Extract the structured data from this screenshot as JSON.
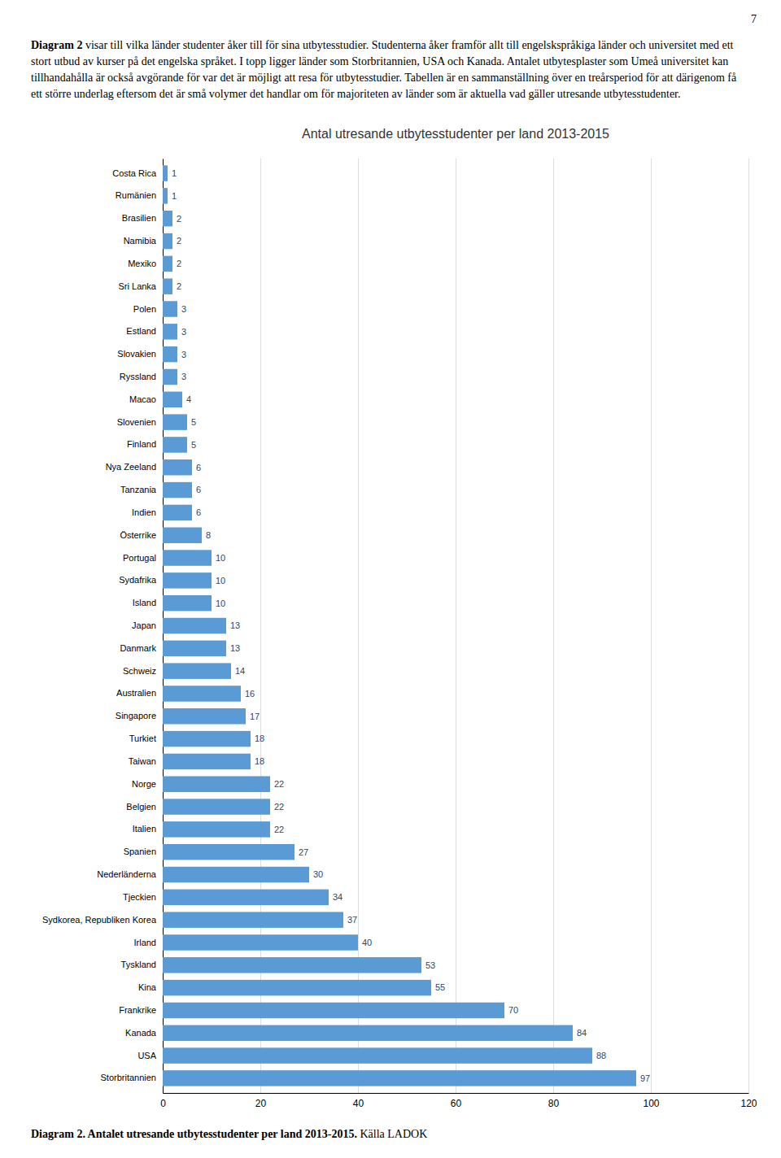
{
  "page_number": "7",
  "paragraph_lead": "Diagram 2",
  "paragraph": "visar till vilka länder studenter åker till för sina utbytesstudier. Studenterna åker framför allt till engelskspråkiga länder och universitet med ett stort utbud av kurser på det engelska språket. I topp ligger länder som Storbritannien, USA och Kanada. Antalet utbytesplaster som Umeå universitet kan tillhandahålla är också avgörande för var det är möjligt att resa för utbytesstudier. Tabellen är en sammanställning över en treårsperiod för att därigenom få ett större underlag eftersom det är små volymer det handlar om för majoriteten av länder som är aktuella vad gäller utresande utbytesstudenter.",
  "caption_bold": "Diagram 2. Antalet utresande utbytesstudenter per land 2013-2015.",
  "caption": "Källa LADOK",
  "chart_data": {
    "type": "bar",
    "orientation": "horizontal",
    "title": "Antal utresande utbytesstudenter per land 2013-2015",
    "categories": [
      "Costa Rica",
      "Rumänien",
      "Brasilien",
      "Namibia",
      "Mexiko",
      "Sri Lanka",
      "Polen",
      "Estland",
      "Slovakien",
      "Ryssland",
      "Macao",
      "Slovenien",
      "Finland",
      "Nya Zeeland",
      "Tanzania",
      "Indien",
      "Österrike",
      "Portugal",
      "Sydafrika",
      "Island",
      "Japan",
      "Danmark",
      "Schweiz",
      "Australien",
      "Singapore",
      "Turkiet",
      "Taiwan",
      "Norge",
      "Belgien",
      "Italien",
      "Spanien",
      "Nederländerna",
      "Tjeckien",
      "Sydkorea, Republiken Korea",
      "Irland",
      "Tyskland",
      "Kina",
      "Frankrike",
      "Kanada",
      "USA",
      "Storbritannien"
    ],
    "values": [
      1,
      1,
      2,
      2,
      2,
      2,
      3,
      3,
      3,
      3,
      4,
      5,
      5,
      6,
      6,
      6,
      8,
      10,
      10,
      10,
      13,
      13,
      14,
      16,
      17,
      18,
      18,
      22,
      22,
      22,
      27,
      30,
      34,
      37,
      40,
      53,
      55,
      70,
      84,
      88,
      97
    ],
    "color": "#5B9BD5",
    "xlim": [
      0,
      120
    ],
    "xticks": [
      0,
      20,
      40,
      60,
      80,
      100,
      120
    ],
    "grid": true,
    "data_labels": true
  }
}
